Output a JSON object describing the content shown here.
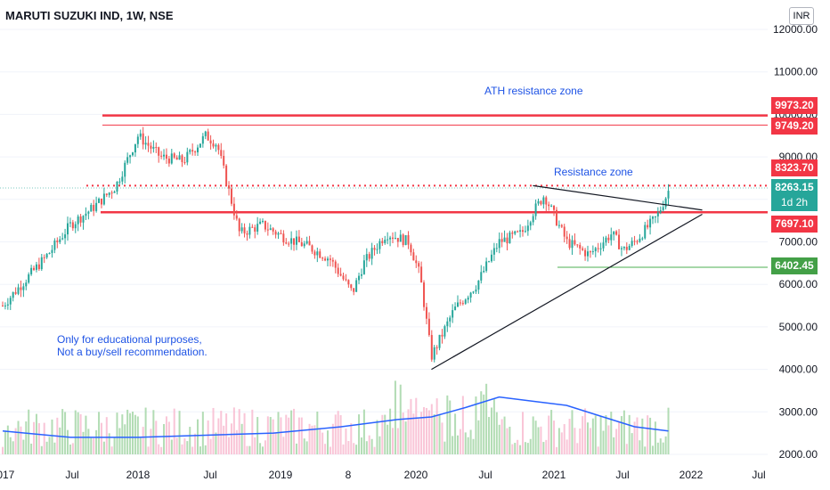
{
  "header": {
    "title": "MARUTI SUZUKI IND, 1W, NSE",
    "currency": "INR"
  },
  "annotations": {
    "ath_zone": "ATH resistance zone",
    "resistance_zone": "Resistance zone",
    "disclaimer_line1": "Only for educational purposes,",
    "disclaimer_line2": "Not a buy/sell recommendation."
  },
  "price_labels": {
    "ath_upper": "9973.20",
    "ath_lower": "9749.20",
    "resistance": "8323.70",
    "last_price": "8263.15",
    "countdown": "1d 2h",
    "support": "7697.10",
    "low_level": "6402.45"
  },
  "colors": {
    "up": "#26a69a",
    "down": "#ef5350",
    "level": "#f23645",
    "volume_ma": "#2962ff",
    "support_green": "#4caf50",
    "note_text": "#1e53e5",
    "last_price_bg": "#26a69a"
  },
  "chart_data": {
    "type": "candlestick",
    "title": "MARUTI SUZUKI IND, 1W, NSE",
    "y_axis": {
      "ticks": [
        "12000.00",
        "11000.00",
        "10000.00",
        "9000.00",
        "8000.00",
        "7000.00",
        "6000.00",
        "5000.00",
        "4000.00",
        "3000.00",
        "2000.00"
      ],
      "range": [
        1800,
        12200
      ]
    },
    "x_axis": {
      "ticks": [
        "2017",
        "Jul",
        "2018",
        "Jul",
        "2019",
        "8",
        "2020",
        "Jul",
        "2021",
        "Jul",
        "2022",
        "Jul"
      ],
      "range": [
        "2017-01",
        "2022-08"
      ]
    },
    "horizontal_levels": [
      {
        "value": 9973.2,
        "style": "solid",
        "label": "9973.20"
      },
      {
        "value": 9749.2,
        "style": "solid",
        "label": "9749.20"
      },
      {
        "value": 8323.7,
        "style": "dotted",
        "label": "8323.70"
      },
      {
        "value": 7697.1,
        "style": "solid",
        "label": "7697.10"
      },
      {
        "value": 6402.45,
        "style": "solid",
        "label": "6402.45"
      }
    ],
    "trendlines": [
      {
        "name": "upper",
        "from": [
          "2020-12",
          8323.7
        ],
        "to": [
          "2022-03",
          7750
        ]
      },
      {
        "name": "lower",
        "from": [
          "2020-03",
          4000
        ],
        "to": [
          "2022-03",
          7650
        ]
      }
    ],
    "price_path": [
      [
        "2017-01",
        5500
      ],
      [
        "2017-03",
        6100
      ],
      [
        "2017-05",
        6700
      ],
      [
        "2017-07",
        7400
      ],
      [
        "2017-09",
        7800
      ],
      [
        "2017-11",
        8300
      ],
      [
        "2018-01",
        9500
      ],
      [
        "2018-03",
        9000
      ],
      [
        "2018-05",
        8900
      ],
      [
        "2018-07",
        9500
      ],
      [
        "2018-08",
        9300
      ],
      [
        "2018-10",
        7200
      ],
      [
        "2018-12",
        7400
      ],
      [
        "2019-02",
        7100
      ],
      [
        "2019-04",
        6900
      ],
      [
        "2019-06",
        6600
      ],
      [
        "2019-08",
        5800
      ],
      [
        "2019-09",
        6500
      ],
      [
        "2019-11",
        7200
      ],
      [
        "2020-01",
        7000
      ],
      [
        "2020-02",
        6200
      ],
      [
        "2020-03",
        4300
      ],
      [
        "2020-05",
        5400
      ],
      [
        "2020-07",
        6000
      ],
      [
        "2020-09",
        7000
      ],
      [
        "2020-11",
        7200
      ],
      [
        "2020-12",
        7700
      ],
      [
        "2021-01",
        8100
      ],
      [
        "2021-03",
        7000
      ],
      [
        "2021-05",
        6700
      ],
      [
        "2021-07",
        7200
      ],
      [
        "2021-08",
        6800
      ],
      [
        "2021-09",
        7000
      ],
      [
        "2021-10",
        7300
      ],
      [
        "2021-11",
        7600
      ],
      [
        "2021-12",
        8200
      ]
    ],
    "volume_ma_path": [
      [
        "2017-01",
        2550
      ],
      [
        "2017-07",
        2400
      ],
      [
        "2018-01",
        2400
      ],
      [
        "2018-07",
        2450
      ],
      [
        "2019-01",
        2500
      ],
      [
        "2019-07",
        2650
      ],
      [
        "2019-12",
        2820
      ],
      [
        "2020-03",
        2880
      ],
      [
        "2020-06",
        3100
      ],
      [
        "2020-09",
        3350
      ],
      [
        "2020-12",
        3250
      ],
      [
        "2021-03",
        3150
      ],
      [
        "2021-06",
        2900
      ],
      [
        "2021-09",
        2650
      ],
      [
        "2021-12",
        2550
      ]
    ]
  }
}
